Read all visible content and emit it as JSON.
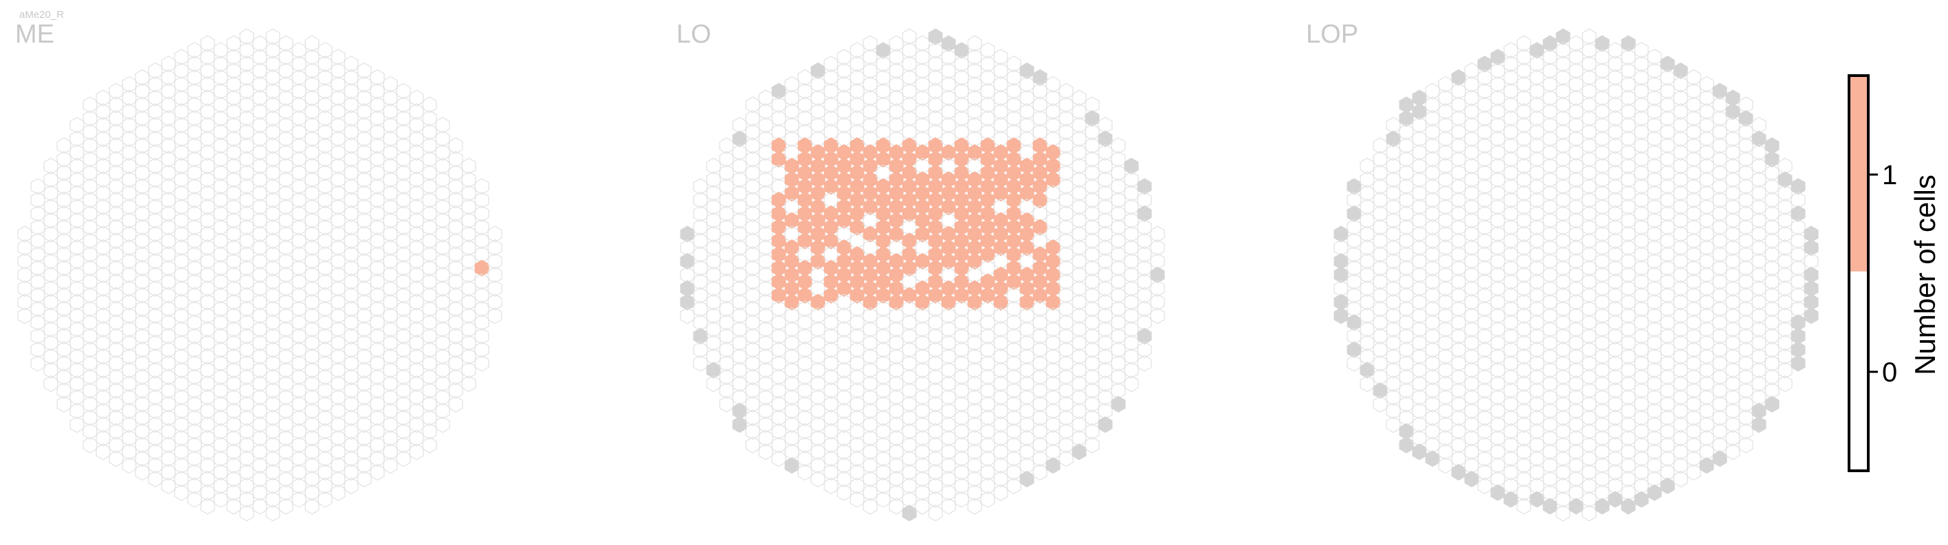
{
  "figure": {
    "cell_type_tag": "aMe20_R"
  },
  "chart_data": {
    "type": "heatmap",
    "cell_type": "aMe20_R",
    "panels": [
      {
        "name": "ME",
        "rows": 37,
        "cols": 37,
        "occupancy": "sparse",
        "count_1": 1
      },
      {
        "name": "LO",
        "rows": 37,
        "cols": 37,
        "occupancy": "dense_upper",
        "count_1": 180
      },
      {
        "name": "LOP",
        "rows": 37,
        "cols": 37,
        "occupancy": "none",
        "count_1": 0
      }
    ],
    "colorbar": {
      "label": "Number of cells",
      "ticks": [
        0,
        1
      ],
      "range": [
        -0.5,
        1.5
      ],
      "colors": {
        "0": "#ffffff",
        "1": "#f8b39a"
      }
    },
    "colors": {
      "empty_hex_stroke": "#e2e2e2",
      "boundary_hex": "#d4d4d4",
      "value_1": "#f8b39a",
      "panel_title": "#c8c8c8"
    }
  }
}
